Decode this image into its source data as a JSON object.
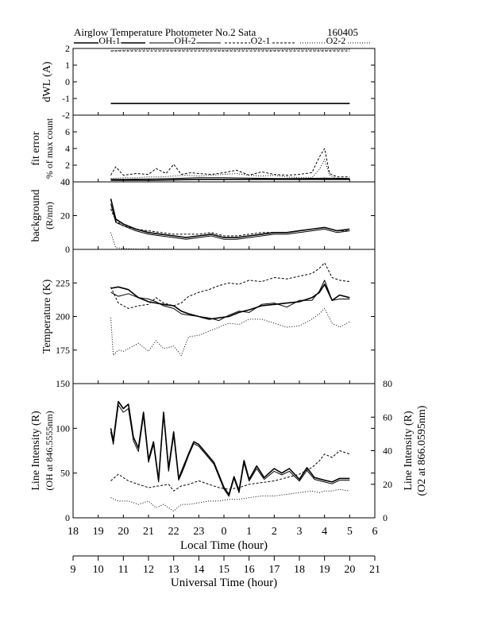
{
  "title": "Airglow Temperature Photometer No.2  Sata",
  "date": "160405",
  "legend": [
    "OH-1",
    "OH-2",
    "O2-1",
    "O2-2"
  ],
  "x_local_label": "Local Time (hour)",
  "x_ut_label": "Universal Time (hour)",
  "x_local_ticks": [
    "18",
    "19",
    "20",
    "21",
    "22",
    "23",
    "0",
    "1",
    "2",
    "3",
    "4",
    "5",
    "6"
  ],
  "x_ut_ticks": [
    "9",
    "10",
    "11",
    "12",
    "13",
    "14",
    "15",
    "16",
    "17",
    "18",
    "19",
    "20",
    "21"
  ],
  "chart_data": [
    {
      "type": "line",
      "panel": "dWL",
      "ylabel": "dWL (A)",
      "ylim": [
        -2,
        2
      ],
      "yticks": [
        "2",
        "1",
        "0",
        "-1",
        "-2"
      ],
      "x_unit": "UT hour",
      "series": [
        {
          "name": "OH-1",
          "x": [
            10.5,
            11,
            12,
            13,
            14,
            15,
            16,
            17,
            18,
            19,
            20
          ],
          "y": [
            -1.3,
            -1.3,
            -1.3,
            -1.3,
            -1.3,
            -1.3,
            -1.3,
            -1.3,
            -1.3,
            -1.3,
            -1.3
          ]
        },
        {
          "name": "OH-2",
          "x": [
            10.5,
            11,
            12,
            13,
            14,
            15,
            16,
            17,
            18,
            19,
            20
          ],
          "y": [
            -1.3,
            -1.3,
            -1.3,
            -1.3,
            -1.3,
            -1.3,
            -1.3,
            -1.3,
            -1.3,
            -1.3,
            -1.3
          ]
        },
        {
          "name": "O2-1",
          "x": [
            10.5,
            11,
            12,
            13,
            14,
            15,
            16,
            17,
            18,
            19,
            20
          ],
          "y": [
            1.85,
            1.85,
            1.85,
            1.85,
            1.85,
            1.85,
            1.85,
            1.85,
            1.85,
            1.85,
            1.85
          ]
        },
        {
          "name": "O2-2",
          "x": [
            10.5,
            11,
            12,
            13,
            14,
            15,
            16,
            17,
            18,
            19,
            20
          ],
          "y": [
            1.85,
            1.9,
            1.95,
            1.9,
            1.95,
            1.9,
            1.95,
            1.9,
            1.95,
            1.9,
            1.95
          ]
        }
      ]
    },
    {
      "type": "line",
      "panel": "fit error",
      "ylabel": "fit error",
      "ylabel2": "% of max count",
      "ylim": [
        0,
        8
      ],
      "yticks": [
        "6",
        "4",
        "2",
        "0"
      ],
      "x_unit": "UT hour",
      "series": [
        {
          "name": "OH-1",
          "x": [
            10.5,
            11,
            12,
            13,
            14,
            15,
            16,
            17,
            18,
            19,
            20
          ],
          "y": [
            0.2,
            0.2,
            0.2,
            0.25,
            0.3,
            0.3,
            0.3,
            0.3,
            0.3,
            0.3,
            0.3
          ]
        },
        {
          "name": "OH-2",
          "x": [
            10.5,
            11,
            12,
            13,
            14,
            15,
            16,
            17,
            18,
            19,
            20
          ],
          "y": [
            0.3,
            0.3,
            0.35,
            0.4,
            0.5,
            0.5,
            0.45,
            0.4,
            0.4,
            0.45,
            0.4
          ]
        },
        {
          "name": "O2-1",
          "x": [
            10.5,
            10.7,
            11,
            11.5,
            12,
            12.3,
            12.7,
            13,
            13.3,
            13.7,
            14,
            14.5,
            15,
            15.5,
            16,
            16.5,
            17,
            17.5,
            18,
            18.5,
            18.8,
            19,
            19.2,
            19.5,
            20
          ],
          "y": [
            0.8,
            1.8,
            0.8,
            1.0,
            0.9,
            1.6,
            1.0,
            2.1,
            0.9,
            1.1,
            1.0,
            0.9,
            1.1,
            1.4,
            0.8,
            1.2,
            0.9,
            0.8,
            0.9,
            1.1,
            3.0,
            4.0,
            1.0,
            0.6,
            0.6
          ]
        },
        {
          "name": "O2-2",
          "x": [
            10.5,
            11,
            11.5,
            12,
            12.5,
            13,
            13.5,
            14,
            14.5,
            15,
            15.5,
            16,
            16.5,
            17,
            17.5,
            18,
            18.5,
            18.8,
            19,
            19.2,
            19.5,
            20
          ],
          "y": [
            0.4,
            0.5,
            0.5,
            0.6,
            0.6,
            0.7,
            0.8,
            0.7,
            0.8,
            0.9,
            1.0,
            0.8,
            0.7,
            0.8,
            0.6,
            0.5,
            0.5,
            1.5,
            2.7,
            0.8,
            0.4,
            0.3
          ]
        }
      ]
    },
    {
      "type": "line",
      "panel": "background",
      "ylabel": "background",
      "ylabel2": "(R/nm)",
      "ylim": [
        0,
        40
      ],
      "yticks": [
        "40",
        "20",
        "0"
      ],
      "x_unit": "UT hour",
      "series": [
        {
          "name": "OH-1",
          "x": [
            10.5,
            10.7,
            11,
            11.5,
            12,
            12.5,
            13,
            13.5,
            14,
            14.5,
            15,
            15.5,
            16,
            16.5,
            17,
            17.5,
            18,
            18.5,
            19,
            19.5,
            20
          ],
          "y": [
            30,
            18,
            15,
            12,
            10,
            9,
            8,
            7,
            8,
            9,
            7,
            7,
            8,
            9,
            10,
            10,
            11,
            12,
            13,
            11,
            12
          ]
        },
        {
          "name": "OH-2",
          "x": [
            10.5,
            10.7,
            11,
            11.5,
            12,
            12.5,
            13,
            13.5,
            14,
            14.5,
            15,
            15.5,
            16,
            16.5,
            17,
            17.5,
            18,
            18.5,
            19,
            19.5,
            20
          ],
          "y": [
            27,
            16,
            14,
            11,
            9,
            8,
            7,
            6,
            7,
            8,
            6,
            6,
            7,
            8,
            9,
            9,
            10,
            11,
            12,
            10,
            11
          ]
        },
        {
          "name": "O2-1",
          "x": [
            10.5,
            10.7,
            11,
            11.5,
            12,
            12.5,
            13,
            13.5,
            14,
            14.5,
            15,
            15.5,
            16,
            16.5,
            17,
            17.5,
            18,
            18.5,
            19,
            19.5,
            20
          ],
          "y": [
            24,
            17,
            14,
            12,
            11,
            10,
            9,
            9,
            9,
            10,
            8,
            8,
            9,
            10,
            10,
            10,
            11,
            12,
            13,
            11,
            11
          ]
        },
        {
          "name": "O2-2",
          "x": [
            10.5,
            10.7,
            11,
            11.5,
            12,
            13
          ],
          "y": [
            10,
            1,
            0.5,
            0.3,
            0.2,
            0.2
          ]
        }
      ]
    },
    {
      "type": "line",
      "panel": "temperature",
      "ylabel": "Temperature (K)",
      "ylim": [
        150,
        250
      ],
      "yticks": [
        "225",
        "200",
        "175"
      ],
      "x_unit": "UT hour",
      "series": [
        {
          "name": "OH-1",
          "x": [
            10.5,
            10.8,
            11.2,
            11.6,
            12,
            12.3,
            12.6,
            13,
            13.3,
            13.6,
            14,
            14.4,
            14.8,
            15.2,
            15.6,
            16,
            16.5,
            17,
            17.5,
            18,
            18.5,
            18.8,
            19,
            19.3,
            19.6,
            20
          ],
          "y": [
            221,
            222,
            220,
            214,
            211,
            210,
            209,
            208,
            204,
            202,
            200,
            198,
            199,
            200,
            203,
            205,
            208,
            209,
            210,
            211,
            214,
            218,
            224,
            212,
            216,
            214
          ]
        },
        {
          "name": "OH-2",
          "x": [
            10.5,
            10.8,
            11.2,
            11.6,
            12,
            12.3,
            12.6,
            13,
            13.3,
            13.6,
            14,
            14.4,
            14.8,
            15.2,
            15.6,
            16,
            16.5,
            17,
            17.5,
            18,
            18.5,
            18.8,
            19,
            19.3,
            19.6,
            20
          ],
          "y": [
            218,
            215,
            217,
            214,
            213,
            211,
            208,
            206,
            202,
            201,
            200,
            199,
            197,
            201,
            204,
            203,
            209,
            210,
            207,
            212,
            212,
            219,
            227,
            212,
            213,
            213
          ]
        },
        {
          "name": "O2-1",
          "x": [
            10.5,
            10.8,
            11.2,
            11.6,
            12,
            12.3,
            12.6,
            13,
            13.3,
            13.6,
            14,
            14.4,
            14.8,
            15.2,
            15.6,
            16,
            16.5,
            17,
            17.5,
            18,
            18.5,
            18.8,
            19,
            19.3,
            19.6,
            20
          ],
          "y": [
            222,
            210,
            206,
            208,
            209,
            214,
            210,
            208,
            210,
            215,
            218,
            220,
            223,
            225,
            224,
            227,
            226,
            229,
            228,
            230,
            232,
            236,
            240,
            229,
            227,
            226
          ]
        },
        {
          "name": "O2-2",
          "x": [
            10.5,
            10.6,
            10.8,
            11,
            11.3,
            11.6,
            12,
            12.3,
            12.6,
            13,
            13.3,
            13.6,
            14,
            14.4,
            14.8,
            15.2,
            15.6,
            16,
            16.5,
            17,
            17.5,
            18,
            18.5,
            18.8,
            19,
            19.3,
            19.6,
            20
          ],
          "y": [
            199,
            171,
            175,
            174,
            177,
            180,
            174,
            182,
            176,
            178,
            171,
            185,
            186,
            189,
            192,
            195,
            194,
            198,
            198,
            195,
            192,
            193,
            198,
            202,
            206,
            195,
            192,
            196
          ]
        }
      ]
    },
    {
      "type": "line",
      "panel": "line intensity",
      "ylabel": "Line Intensity (R)",
      "ylabel2": "(OH at 846.5555nm)",
      "y2label": "Line Intensity (R)",
      "y2label2": "(O2 at 866.0595nm)",
      "ylim": [
        0,
        150
      ],
      "y2lim": [
        0,
        80
      ],
      "yticks": [
        "150",
        "100",
        "50",
        "0"
      ],
      "y2ticks": [
        "80",
        "60",
        "40",
        "20",
        "0"
      ],
      "x_unit": "UT hour",
      "series": [
        {
          "name": "OH-1",
          "axis": "left",
          "x": [
            10.5,
            10.6,
            10.8,
            11,
            11.2,
            11.4,
            11.6,
            11.8,
            12,
            12.2,
            12.4,
            12.6,
            12.8,
            13,
            13.2,
            13.4,
            13.6,
            13.8,
            14,
            14.3,
            14.6,
            15,
            15.2,
            15.4,
            15.6,
            15.8,
            16,
            16.3,
            16.6,
            17,
            17.3,
            17.6,
            18,
            18.3,
            18.6,
            19,
            19.3,
            19.6,
            20
          ],
          "y": [
            100,
            86,
            130,
            122,
            127,
            90,
            78,
            118,
            65,
            85,
            42,
            118,
            55,
            96,
            44,
            58,
            72,
            85,
            82,
            72,
            62,
            34,
            26,
            46,
            30,
            64,
            43,
            58,
            45,
            55,
            50,
            55,
            43,
            56,
            45,
            42,
            40,
            44,
            44
          ]
        },
        {
          "name": "OH-2",
          "axis": "left",
          "x": [
            10.5,
            10.6,
            10.8,
            11,
            11.2,
            11.4,
            11.6,
            11.8,
            12,
            12.2,
            12.4,
            12.6,
            12.8,
            13,
            13.2,
            13.4,
            13.6,
            13.8,
            14,
            14.3,
            14.6,
            15,
            15.2,
            15.4,
            15.6,
            15.8,
            16,
            16.3,
            16.6,
            17,
            17.3,
            17.6,
            18,
            18.3,
            18.6,
            19,
            19.3,
            19.6,
            20
          ],
          "y": [
            96,
            82,
            126,
            118,
            122,
            86,
            74,
            114,
            62,
            82,
            40,
            115,
            52,
            92,
            42,
            55,
            70,
            83,
            80,
            70,
            60,
            32,
            24,
            44,
            28,
            61,
            41,
            55,
            43,
            52,
            48,
            52,
            41,
            53,
            43,
            40,
            38,
            42,
            42
          ]
        },
        {
          "name": "O2-1",
          "axis": "right",
          "x": [
            10.5,
            10.8,
            11.2,
            11.6,
            12,
            12.4,
            12.8,
            13,
            13.3,
            13.6,
            14,
            14.4,
            14.8,
            15.2,
            15.6,
            16,
            16.5,
            17,
            17.5,
            18,
            18.5,
            18.8,
            19,
            19.3,
            19.6,
            20
          ],
          "y": [
            22,
            26,
            22,
            20,
            18,
            19,
            20,
            16,
            19,
            20,
            22,
            20,
            18,
            17,
            18,
            20,
            21,
            22,
            24,
            26,
            30,
            34,
            38,
            36,
            40,
            38
          ]
        },
        {
          "name": "O2-2",
          "axis": "right",
          "x": [
            10.5,
            10.8,
            11.2,
            11.6,
            12,
            12.3,
            12.6,
            13,
            13.3,
            13.6,
            14,
            14.4,
            14.8,
            15.2,
            15.6,
            16,
            16.5,
            17,
            17.5,
            18,
            18.5,
            18.8,
            19,
            19.3,
            19.6,
            20
          ],
          "y": [
            12,
            10,
            10,
            8,
            10,
            6,
            8,
            4,
            8,
            8,
            9,
            10,
            10,
            11,
            11,
            12,
            13,
            13,
            14,
            15,
            16,
            15,
            16,
            16,
            17,
            16
          ]
        }
      ]
    }
  ]
}
